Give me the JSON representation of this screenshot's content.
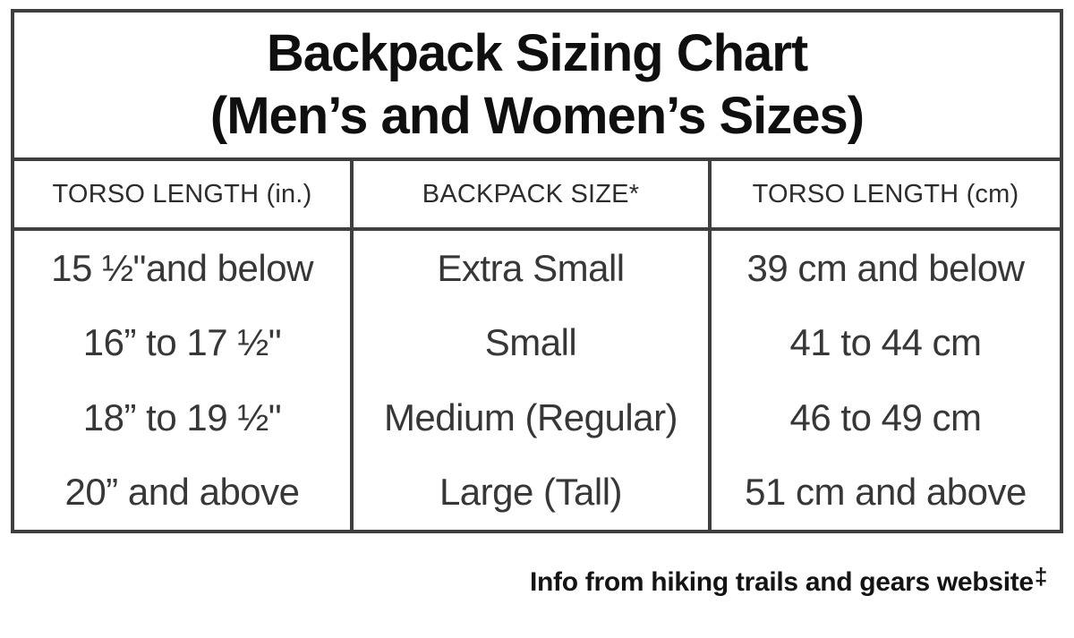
{
  "title": {
    "line1": "Backpack Sizing Chart",
    "line2": "(Men’s and Women’s Sizes)"
  },
  "table": {
    "headers": [
      "TORSO LENGTH (in.)",
      "BACKPACK SIZE*",
      "TORSO LENGTH (cm)"
    ],
    "rows": [
      [
        "15 ½\"and below",
        "Extra Small",
        "39 cm and below"
      ],
      [
        "16” to 17 ½\"",
        "Small",
        "41 to 44 cm"
      ],
      [
        "18” to 19 ½\"",
        "Medium (Regular)",
        "46 to 49 cm"
      ],
      [
        "20” and above",
        "Large (Tall)",
        "51 cm and above"
      ]
    ]
  },
  "footer": {
    "note": "Info from hiking trails and gears website",
    "symbol": "‡"
  },
  "colors": {
    "border": "#3f3f3f",
    "title_text": "#0f0f0f",
    "cell_text": "#373737",
    "background": "#ffffff"
  },
  "chart_data": {
    "type": "table",
    "title": "Backpack Sizing Chart (Men’s and Women’s Sizes)",
    "columns": [
      "TORSO LENGTH (in.)",
      "BACKPACK SIZE*",
      "TORSO LENGTH (cm)"
    ],
    "rows": [
      {
        "torso_length_in": "15 ½\" and below",
        "backpack_size": "Extra Small",
        "torso_length_cm": "39 cm and below"
      },
      {
        "torso_length_in": "16\" to 17 ½\"",
        "backpack_size": "Small",
        "torso_length_cm": "41 to 44 cm"
      },
      {
        "torso_length_in": "18\" to 19 ½\"",
        "backpack_size": "Medium (Regular)",
        "torso_length_cm": "46 to 49 cm"
      },
      {
        "torso_length_in": "20\" and above",
        "backpack_size": "Large (Tall)",
        "torso_length_cm": "51 cm and above"
      }
    ],
    "footnote": "Info from hiking trails and gears website‡",
    "legend_position": "none",
    "grid": "on"
  }
}
